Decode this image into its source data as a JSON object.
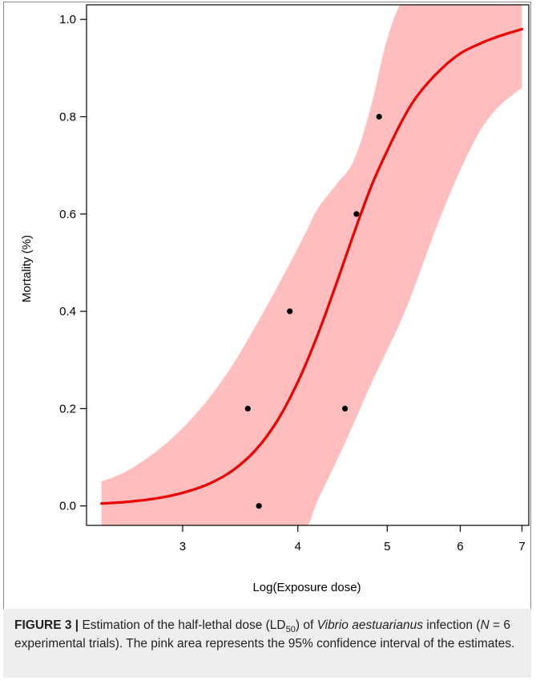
{
  "chart_data": {
    "type": "line",
    "xlabel": "Log(Exposure dose)",
    "ylabel": "Mortality (%)",
    "x_scale": "log",
    "xlim": [
      2.36,
      7.12
    ],
    "ylim": [
      -0.04,
      1.03
    ],
    "x_ticks": [
      3,
      4,
      5,
      6,
      7
    ],
    "y_ticks": [
      0.0,
      0.2,
      0.4,
      0.6,
      0.8,
      1.0
    ],
    "y_tick_labels": [
      "0.0",
      "0.2",
      "0.4",
      "0.6",
      "0.8",
      "1.0"
    ],
    "grid": false,
    "series": [
      {
        "kind": "fitted-curve",
        "color": "#ee0000",
        "x": [
          2.45,
          2.6,
          2.8,
          3.0,
          3.2,
          3.4,
          3.6,
          3.8,
          4.0,
          4.2,
          4.4,
          4.6,
          4.8,
          5.0,
          5.2,
          5.4,
          5.7,
          6.0,
          6.3,
          6.6,
          7.0
        ],
        "y": [
          0.005,
          0.008,
          0.015,
          0.027,
          0.045,
          0.073,
          0.115,
          0.175,
          0.255,
          0.35,
          0.455,
          0.56,
          0.655,
          0.73,
          0.795,
          0.845,
          0.895,
          0.93,
          0.95,
          0.965,
          0.98
        ]
      },
      {
        "kind": "confidence-band",
        "color": "#ffbdbd",
        "x": [
          2.45,
          2.6,
          2.8,
          3.0,
          3.2,
          3.4,
          3.6,
          3.8,
          4.0,
          4.1,
          4.2,
          4.4,
          4.6,
          4.8,
          5.0,
          5.2,
          5.4,
          5.7,
          6.0,
          6.3,
          6.6,
          7.0
        ],
        "upper": [
          0.05,
          0.07,
          0.11,
          0.16,
          0.22,
          0.29,
          0.37,
          0.45,
          0.53,
          0.57,
          0.61,
          0.66,
          0.71,
          0.82,
          0.96,
          1.04,
          1.04,
          1.04,
          1.04,
          1.04,
          1.04,
          1.04
        ],
        "lower": [
          -0.04,
          -0.04,
          -0.04,
          -0.04,
          -0.04,
          -0.04,
          -0.04,
          -0.04,
          -0.04,
          -0.04,
          0.01,
          0.09,
          0.17,
          0.25,
          0.32,
          0.39,
          0.47,
          0.59,
          0.69,
          0.77,
          0.82,
          0.86
        ]
      },
      {
        "kind": "observed-points",
        "color": "#000000",
        "x": [
          3.53,
          3.63,
          3.92,
          4.5,
          4.63,
          4.9
        ],
        "y": [
          0.2,
          0.0,
          0.4,
          0.2,
          0.6,
          0.8
        ]
      }
    ]
  },
  "caption": {
    "label": "FIGURE 3 |",
    "part1": " Estimation of the half-lethal dose (LD",
    "sub": "50",
    "part2": ") of ",
    "species": "Vibrio aestuarianus",
    "part3": " infection (",
    "n_symbol": "N",
    "part4": " = 6 experimental trials). The pink area represents the 95% confidence interval of the estimates."
  }
}
